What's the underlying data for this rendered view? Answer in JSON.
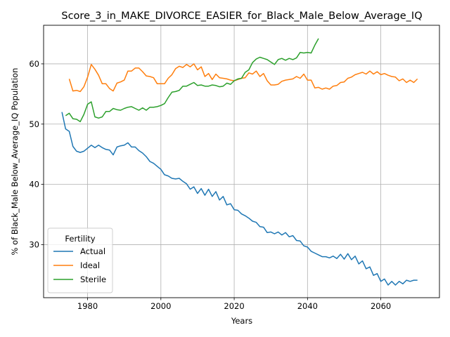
{
  "chart_data": {
    "type": "line",
    "title": "Score_3_in_MAKE_DIVORCE_EASIER_for_Black_Male_Below_Average_IQ",
    "xlabel": "Years",
    "ylabel": "% of Black_Male Below_Average_IQ Population",
    "xlim": [
      1968,
      2076
    ],
    "ylim": [
      21.2,
      66.4
    ],
    "xticks": [
      1980,
      2000,
      2020,
      2040,
      2060
    ],
    "yticks": [
      30,
      40,
      50,
      60
    ],
    "grid": true,
    "legend": {
      "title": "Fertility",
      "placement": "lower-left"
    },
    "series": [
      {
        "name": "Actual",
        "color": "#1f77b4",
        "x": [
          1973,
          1974,
          1975,
          1976,
          1977,
          1978,
          1979,
          1980,
          1981,
          1982,
          1983,
          1984,
          1985,
          1986,
          1987,
          1988,
          1989,
          1990,
          1991,
          1992,
          1993,
          1994,
          1995,
          1996,
          1997,
          1998,
          1999,
          2000,
          2001,
          2002,
          2003,
          2004,
          2005,
          2006,
          2007,
          2008,
          2009,
          2010,
          2011,
          2012,
          2013,
          2014,
          2015,
          2016,
          2017,
          2018,
          2019,
          2020,
          2021,
          2022,
          2023,
          2024,
          2025,
          2026,
          2027,
          2028,
          2029,
          2030,
          2031,
          2032,
          2033,
          2034,
          2035,
          2036,
          2037,
          2038,
          2039,
          2040,
          2041,
          2042,
          2043,
          2044,
          2045,
          2046,
          2047,
          2048,
          2049,
          2050,
          2051,
          2052,
          2053,
          2054,
          2055,
          2056,
          2057,
          2058,
          2059,
          2060,
          2061,
          2062,
          2063,
          2064,
          2065,
          2066,
          2067,
          2068,
          2069,
          2070
        ],
        "y": [
          52.0,
          49.2,
          48.8,
          46.3,
          45.5,
          45.3,
          45.5,
          46.0,
          46.5,
          46.1,
          46.5,
          46.1,
          45.8,
          45.7,
          44.9,
          46.2,
          46.4,
          46.5,
          46.9,
          46.2,
          46.2,
          45.6,
          45.2,
          44.6,
          43.8,
          43.5,
          43.0,
          42.5,
          41.6,
          41.4,
          41.0,
          40.9,
          41.0,
          40.5,
          40.1,
          39.2,
          39.6,
          38.5,
          39.3,
          38.2,
          39.2,
          38.0,
          38.8,
          37.4,
          38.0,
          36.6,
          36.8,
          35.8,
          35.7,
          35.1,
          34.8,
          34.4,
          33.9,
          33.7,
          33.0,
          32.9,
          32.0,
          32.1,
          31.8,
          32.1,
          31.6,
          32.0,
          31.3,
          31.5,
          30.7,
          30.6,
          29.8,
          29.6,
          28.9,
          28.6,
          28.3,
          28.0,
          28.0,
          27.8,
          28.1,
          27.7,
          28.4,
          27.6,
          28.5,
          27.5,
          28.1,
          26.8,
          27.3,
          26.0,
          26.3,
          24.9,
          25.2,
          23.9,
          24.3,
          23.3,
          23.9,
          23.3,
          23.9,
          23.5,
          24.1,
          23.9,
          24.1,
          24.1
        ]
      },
      {
        "name": "Ideal",
        "color": "#ff7f0e",
        "x": [
          1975,
          1976,
          1977,
          1978,
          1979,
          1980,
          1981,
          1982,
          1983,
          1984,
          1985,
          1986,
          1987,
          1988,
          1989,
          1990,
          1991,
          1992,
          1993,
          1994,
          1995,
          1996,
          1997,
          1998,
          1999,
          2000,
          2001,
          2002,
          2003,
          2004,
          2005,
          2006,
          2007,
          2008,
          2009,
          2010,
          2011,
          2012,
          2013,
          2014,
          2015,
          2016,
          2017,
          2018,
          2019,
          2020,
          2021,
          2022,
          2023,
          2024,
          2025,
          2026,
          2027,
          2028,
          2029,
          2030,
          2031,
          2032,
          2033,
          2034,
          2035,
          2036,
          2037,
          2038,
          2039,
          2040,
          2041,
          2042,
          2043,
          2044,
          2045,
          2046,
          2047,
          2048,
          2049,
          2050,
          2051,
          2052,
          2053,
          2054,
          2055,
          2056,
          2057,
          2058,
          2059,
          2060,
          2061,
          2062,
          2063,
          2064,
          2065,
          2066,
          2067,
          2068,
          2069,
          2070
        ],
        "y": [
          57.5,
          55.5,
          55.6,
          55.4,
          56.2,
          57.8,
          59.9,
          59.1,
          58.1,
          56.7,
          56.7,
          55.9,
          55.5,
          56.8,
          57.0,
          57.3,
          58.8,
          58.8,
          59.3,
          59.3,
          58.7,
          58.0,
          57.9,
          57.7,
          56.7,
          56.7,
          56.7,
          57.6,
          58.2,
          59.2,
          59.6,
          59.4,
          59.9,
          59.5,
          60.0,
          59.0,
          59.5,
          57.9,
          58.4,
          57.4,
          58.3,
          57.7,
          57.6,
          57.5,
          57.3,
          57.2,
          57.4,
          57.6,
          57.7,
          58.5,
          58.3,
          58.8,
          57.9,
          58.4,
          57.2,
          56.5,
          56.5,
          56.6,
          57.1,
          57.3,
          57.4,
          57.5,
          57.9,
          57.6,
          58.3,
          57.3,
          57.3,
          56.0,
          56.1,
          55.8,
          56.0,
          55.8,
          56.3,
          56.4,
          56.9,
          57.0,
          57.6,
          57.8,
          58.2,
          58.4,
          58.6,
          58.3,
          58.8,
          58.3,
          58.7,
          58.2,
          58.4,
          58.1,
          57.9,
          57.8,
          57.2,
          57.5,
          56.9,
          57.3,
          56.9,
          57.5
        ]
      },
      {
        "name": "Sterile",
        "color": "#2ca02c",
        "x": [
          1974,
          1975,
          1976,
          1977,
          1978,
          1979,
          1980,
          1981,
          1982,
          1983,
          1984,
          1985,
          1986,
          1987,
          1988,
          1989,
          1990,
          1991,
          1992,
          1993,
          1994,
          1995,
          1996,
          1997,
          1998,
          1999,
          2000,
          2001,
          2002,
          2003,
          2004,
          2005,
          2006,
          2007,
          2008,
          2009,
          2010,
          2011,
          2012,
          2013,
          2014,
          2015,
          2016,
          2017,
          2018,
          2019,
          2020,
          2021,
          2022,
          2023,
          2024,
          2025,
          2026,
          2027,
          2028,
          2029,
          2030,
          2031,
          2032,
          2033,
          2034,
          2035,
          2036,
          2037,
          2038,
          2039,
          2040,
          2041,
          2042,
          2043
        ],
        "y": [
          51.4,
          51.8,
          50.9,
          50.8,
          50.4,
          51.6,
          53.3,
          53.7,
          51.2,
          51.0,
          51.2,
          52.1,
          52.1,
          52.6,
          52.4,
          52.3,
          52.6,
          52.8,
          52.9,
          52.6,
          52.3,
          52.7,
          52.3,
          52.8,
          52.8,
          52.9,
          53.1,
          53.4,
          54.4,
          55.3,
          55.4,
          55.6,
          56.3,
          56.3,
          56.6,
          56.9,
          56.4,
          56.5,
          56.3,
          56.3,
          56.5,
          56.4,
          56.2,
          56.3,
          56.8,
          56.6,
          57.2,
          57.5,
          57.6,
          58.6,
          59.0,
          60.2,
          60.8,
          61.1,
          60.9,
          60.7,
          60.3,
          59.9,
          60.7,
          60.9,
          60.6,
          60.9,
          60.7,
          61.0,
          61.9,
          61.8,
          61.9,
          61.8,
          63.1,
          64.2
        ]
      }
    ]
  }
}
